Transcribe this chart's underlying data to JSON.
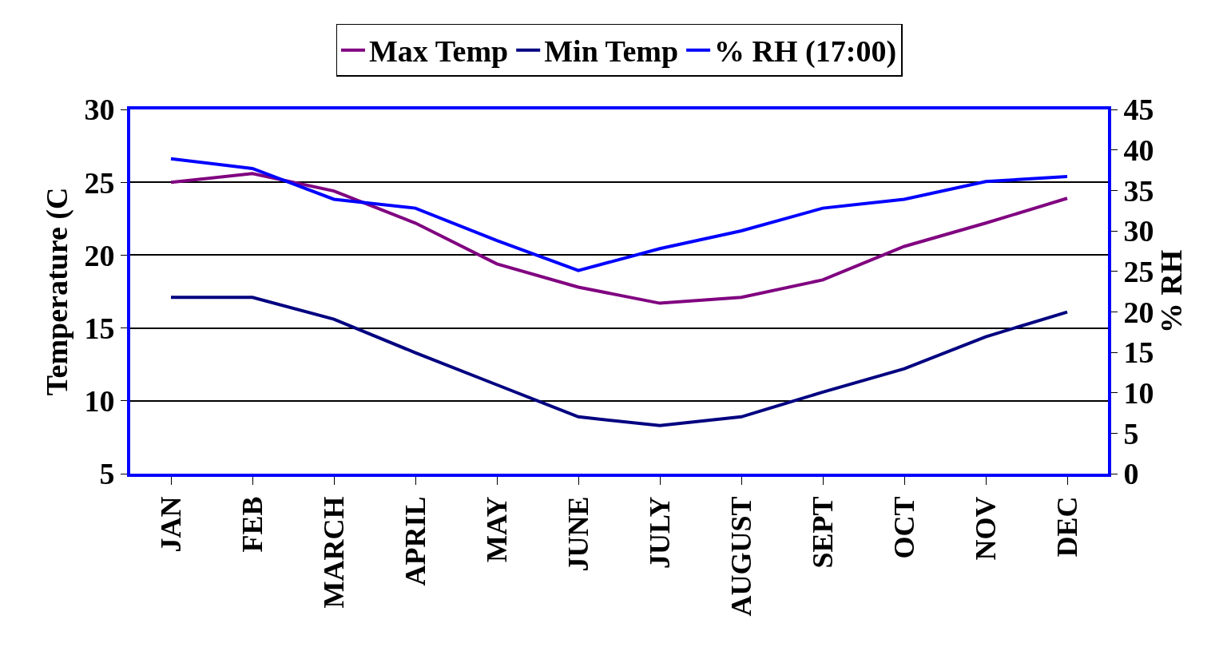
{
  "chart_data": {
    "type": "line",
    "categories": [
      "JAN",
      "FEB",
      "MARCH",
      "APRIL",
      "MAY",
      "JUNE",
      "JULY",
      "AUGUST",
      "SEPT",
      "OCT",
      "NOV",
      "DEC"
    ],
    "series": [
      {
        "name": "Max Temp",
        "color": "#800080",
        "values": [
          25.0,
          25.6,
          24.4,
          22.2,
          19.4,
          17.8,
          16.7,
          17.1,
          18.3,
          20.6,
          22.2,
          23.9
        ]
      },
      {
        "name": "Min Temp",
        "color": "#000080",
        "values": [
          17.1,
          17.1,
          15.6,
          13.3,
          11.1,
          8.9,
          8.3,
          8.9,
          10.6,
          12.2,
          14.4,
          16.1
        ]
      },
      {
        "name": "% RH (17:00)",
        "color": "#0000ff",
        "axis": "y2",
        "values": [
          38.9,
          37.7,
          33.9,
          32.8,
          28.8,
          25.1,
          27.8,
          30.0,
          32.8,
          33.9,
          36.1,
          36.7
        ]
      }
    ],
    "ylabel": "Temperature (C",
    "y2label": "% RH",
    "ylim": [
      5,
      30
    ],
    "yticks": [
      5,
      10,
      15,
      20,
      25,
      30
    ],
    "y2lim": [
      0,
      45
    ],
    "y2ticks": [
      0,
      5,
      10,
      15,
      20,
      25,
      30,
      35,
      40,
      45
    ],
    "grid": "y",
    "legend": "top",
    "marker": "none",
    "line_style": "solid"
  }
}
